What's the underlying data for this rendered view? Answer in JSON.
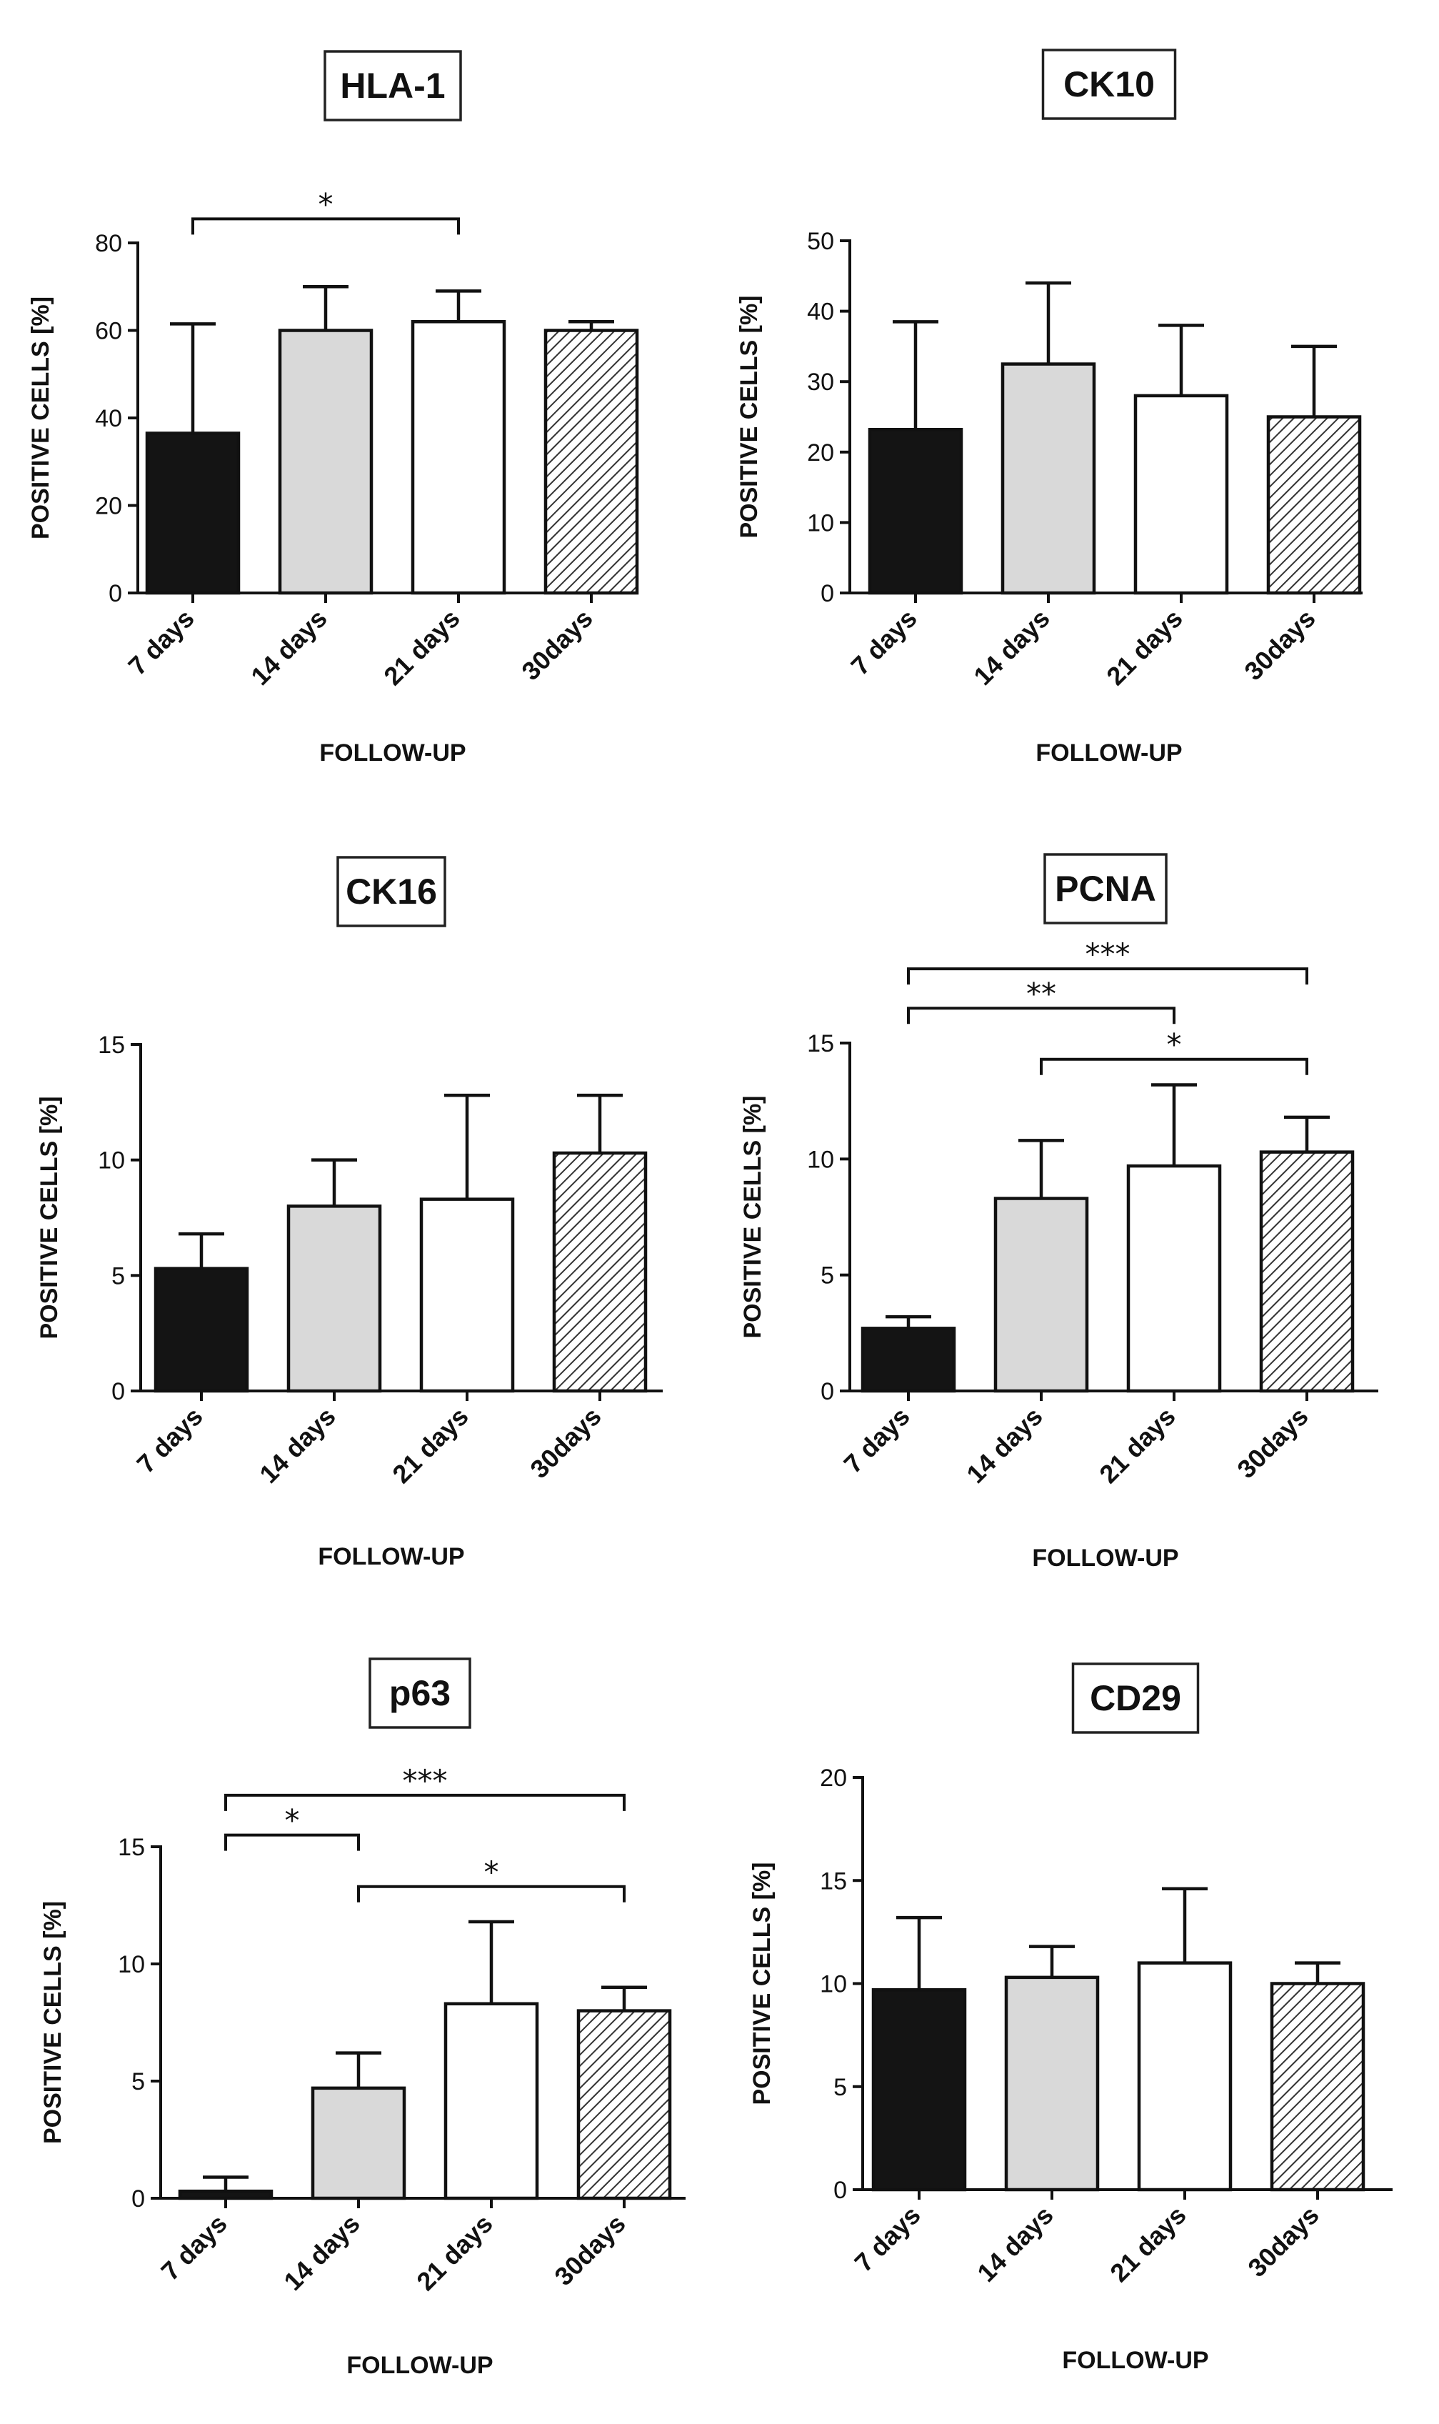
{
  "figure": {
    "fills": {
      "7 days": "#141414",
      "14 days": "#d9d9d9",
      "21 days": "#ffffff",
      "30days": "hatch"
    },
    "hatch_colors": {
      "background": "#ffffff",
      "line": "#333333"
    }
  },
  "chart_data": [
    {
      "type": "bar",
      "title": "HLA-1",
      "categories": [
        "7 days",
        "14 days",
        "21 days",
        "30days"
      ],
      "values": [
        36.5,
        60,
        62,
        60
      ],
      "errors": [
        25,
        10,
        7,
        2
      ],
      "xlabel": "FOLLOW-UP",
      "ylabel": "POSITIVE CELLS [%]",
      "ylim": [
        0,
        80
      ],
      "yticks": [
        0,
        20,
        40,
        60,
        80
      ],
      "significance": [
        {
          "from": 0,
          "to": 2,
          "label": "*",
          "level": 85.5
        }
      ]
    },
    {
      "type": "bar",
      "title": "CK10",
      "categories": [
        "7 days",
        "14 days",
        "21 days",
        "30days"
      ],
      "values": [
        23.2,
        32.5,
        28,
        25
      ],
      "errors": [
        15.3,
        11.5,
        10,
        10
      ],
      "xlabel": "FOLLOW-UP",
      "ylabel": "POSITIVE CELLS [%]",
      "ylim": [
        0,
        50
      ],
      "yticks": [
        0,
        10,
        20,
        30,
        40,
        50
      ],
      "significance": []
    },
    {
      "type": "bar",
      "title": "CK16",
      "categories": [
        "7 days",
        "14 days",
        "21 days",
        "30days"
      ],
      "values": [
        5.3,
        8,
        8.3,
        10.3
      ],
      "errors": [
        1.5,
        2,
        4.5,
        2.5
      ],
      "xlabel": "FOLLOW-UP",
      "ylabel": "POSITIVE CELLS [%]",
      "ylim": [
        0,
        15
      ],
      "yticks": [
        0,
        5,
        10,
        15
      ],
      "significance": []
    },
    {
      "type": "bar",
      "title": "PCNA",
      "categories": [
        "7 days",
        "14 days",
        "21 days",
        "30days"
      ],
      "values": [
        2.7,
        8.3,
        9.7,
        10.3
      ],
      "errors": [
        0.5,
        2.5,
        3.5,
        1.5
      ],
      "xlabel": "FOLLOW-UP",
      "ylabel": "POSITIVE CELLS [%]",
      "ylim": [
        0,
        15
      ],
      "yticks": [
        0,
        5,
        10,
        15
      ],
      "significance": [
        {
          "from": 1,
          "to": 3,
          "label": "*",
          "level": 14.3
        },
        {
          "from": 0,
          "to": 2,
          "label": "**",
          "level": 16.5
        },
        {
          "from": 0,
          "to": 3,
          "label": "***",
          "level": 18.2
        }
      ]
    },
    {
      "type": "bar",
      "title": "p63",
      "categories": [
        "7 days",
        "14 days",
        "21 days",
        "30days"
      ],
      "values": [
        0.3,
        4.7,
        8.3,
        8
      ],
      "errors": [
        0.6,
        1.5,
        3.5,
        1
      ],
      "xlabel": "FOLLOW-UP",
      "ylabel": "POSITIVE CELLS [%]",
      "ylim": [
        0,
        15
      ],
      "yticks": [
        0,
        5,
        10,
        15
      ],
      "significance": [
        {
          "from": 1,
          "to": 3,
          "label": "*",
          "level": 13.3
        },
        {
          "from": 0,
          "to": 1,
          "label": "*",
          "level": 15.5
        },
        {
          "from": 0,
          "to": 3,
          "label": "***",
          "level": 17.2
        }
      ]
    },
    {
      "type": "bar",
      "title": "CD29",
      "categories": [
        "7 days",
        "14 days",
        "21 days",
        "30days"
      ],
      "values": [
        9.7,
        10.3,
        11,
        10
      ],
      "errors": [
        3.5,
        1.5,
        3.6,
        1
      ],
      "xlabel": "FOLLOW-UP",
      "ylabel": "POSITIVE CELLS [%]",
      "ylim": [
        0,
        20
      ],
      "yticks": [
        0,
        5,
        10,
        15,
        20
      ],
      "significance": []
    }
  ]
}
